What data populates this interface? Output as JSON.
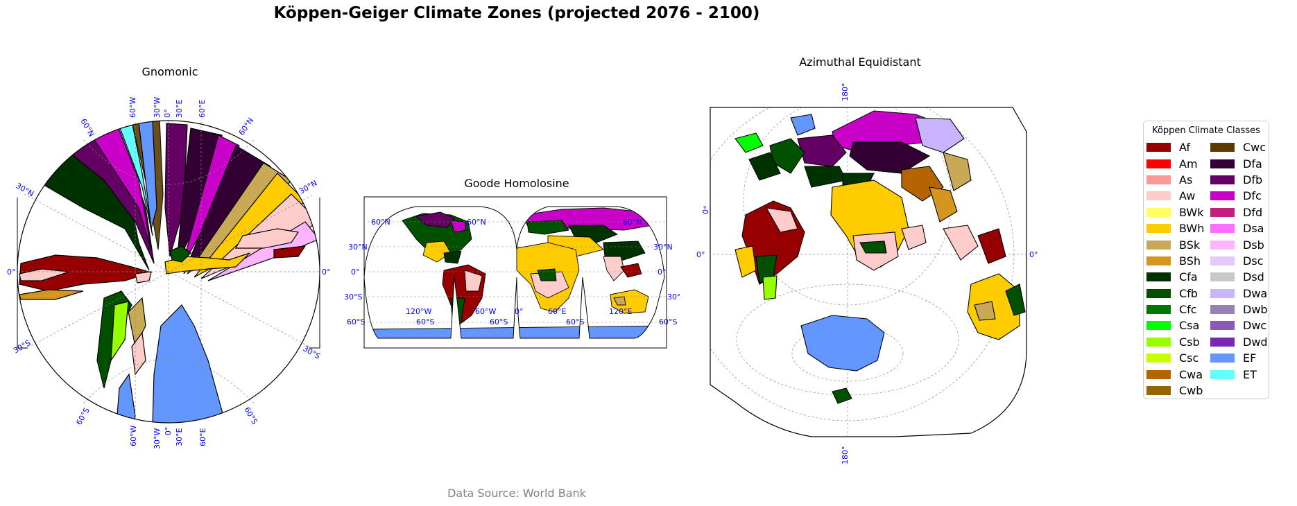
{
  "title": "Köppen-Geiger Climate Zones (projected 2076 - 2100)",
  "footer": "Data Source: World Bank",
  "panels": {
    "gnomonic": {
      "title": "Gnomonic",
      "labels": {
        "top_60w": "60°W",
        "top_30w": "30°W",
        "top_0": "0°",
        "top_30e": "30°E",
        "top_60e": "60°E",
        "bot_60w": "60°W",
        "bot_30w": "30°W",
        "bot_0": "0°",
        "bot_30e": "30°E",
        "bot_60e": "60°E",
        "n60_left": "60°N",
        "n60_right": "60°N",
        "n30_left": "30°N",
        "n30_right": "30°N",
        "eq_left": "0°",
        "eq_right": "0°",
        "s30_left": "30°S",
        "s30_right": "30°S",
        "s60_left": "60°S",
        "s60_right": "60°S"
      }
    },
    "goode": {
      "title": "Goode Homolosine",
      "labels": {
        "n60_left": "60°N",
        "n60_mid": "60°N",
        "n60_right": "60°N",
        "n30_left": "30°N",
        "n30_right": "30°N",
        "eq_left": "0°",
        "eq_right": "0°",
        "s30_left": "30°S",
        "s30_right": "30°S",
        "s60_left": "60°S",
        "s60_mid1": "60°S",
        "s60_mid2": "60°S",
        "s60_mid3": "60°S",
        "s60_right": "60°S",
        "lon_120w_top": "120°W",
        "lon_120w": "120°W",
        "lon_60w": "60°W",
        "lon_0": "0°",
        "lon_60e": "60°E",
        "lon_120e": "120°E"
      }
    },
    "azimuthal": {
      "title": "Azimuthal Equidistant",
      "labels": {
        "top_180": "180°",
        "bottom_180": "180°",
        "left_0": "0°",
        "left_0_rot": "0°",
        "right_0": "0°"
      }
    }
  },
  "legend": {
    "title": "Köppen Climate Classes",
    "columns": [
      [
        {
          "code": "Af",
          "color": "#960000"
        },
        {
          "code": "Am",
          "color": "#ff0000"
        },
        {
          "code": "As",
          "color": "#ff9999"
        },
        {
          "code": "Aw",
          "color": "#ffcccc"
        },
        {
          "code": "BWk",
          "color": "#ffff64"
        },
        {
          "code": "BWh",
          "color": "#ffcc00"
        },
        {
          "code": "BSk",
          "color": "#c8aa56"
        },
        {
          "code": "BSh",
          "color": "#d4961e"
        },
        {
          "code": "Cfa",
          "color": "#003200"
        },
        {
          "code": "Cfb",
          "color": "#005000"
        },
        {
          "code": "Cfc",
          "color": "#007800"
        },
        {
          "code": "Csa",
          "color": "#00ff00"
        },
        {
          "code": "Csb",
          "color": "#96ff00"
        },
        {
          "code": "Csc",
          "color": "#c8ff00"
        },
        {
          "code": "Cwa",
          "color": "#b46400"
        },
        {
          "code": "Cwb",
          "color": "#966400"
        }
      ],
      [
        {
          "code": "Cwc",
          "color": "#5a3c00"
        },
        {
          "code": "Dfa",
          "color": "#320032"
        },
        {
          "code": "Dfb",
          "color": "#640064"
        },
        {
          "code": "Dfc",
          "color": "#c800c8"
        },
        {
          "code": "Dfd",
          "color": "#c81e82"
        },
        {
          "code": "Dsa",
          "color": "#ff6eff"
        },
        {
          "code": "Dsb",
          "color": "#ffb4ff"
        },
        {
          "code": "Dsc",
          "color": "#e6c8ff"
        },
        {
          "code": "Dsd",
          "color": "#c8c8c8"
        },
        {
          "code": "Dwa",
          "color": "#c8b4ff"
        },
        {
          "code": "Dwb",
          "color": "#9a7fb4"
        },
        {
          "code": "Dwc",
          "color": "#8a5ab4"
        },
        {
          "code": "Dwd",
          "color": "#7a28b4"
        },
        {
          "code": "EF",
          "color": "#6496ff"
        },
        {
          "code": "ET",
          "color": "#64ffff"
        }
      ]
    ]
  }
}
